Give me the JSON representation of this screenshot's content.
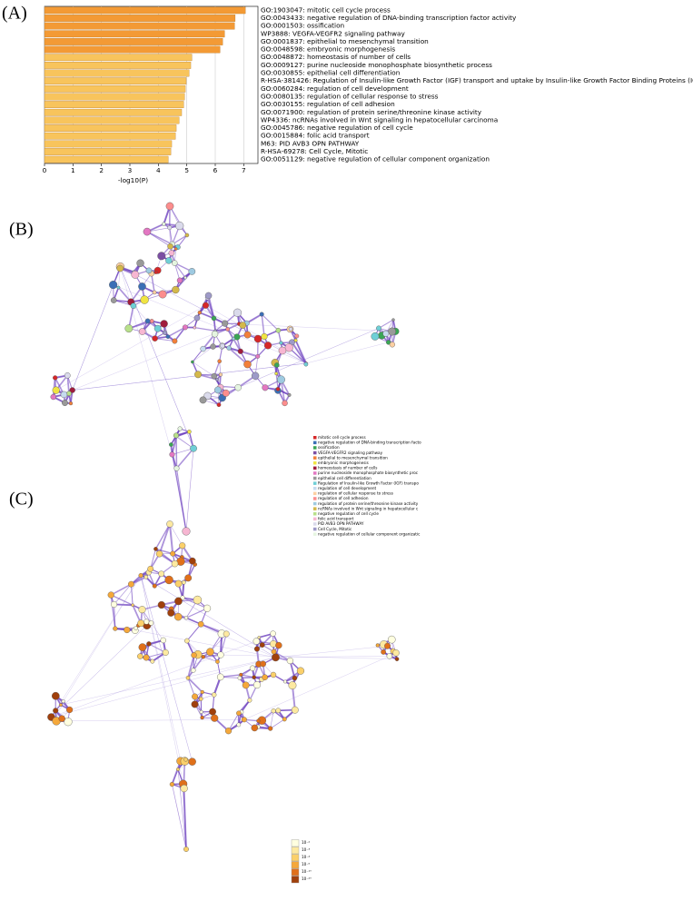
{
  "panels": [
    "(A)",
    "(B)",
    "(C)"
  ],
  "chart_data": {
    "type": "bar",
    "orientation": "horizontal",
    "categories": [
      "GO:1903047: mitotic cell cycle process",
      "GO:0043433: negative regulation of DNA-binding transcription factor activity",
      "GO:0001503: ossification",
      "WP3888: VEGFA-VEGFR2 signaling pathway",
      "GO:0001837: epithelial to mesenchymal transition",
      "GO:0048598: embryonic morphogenesis",
      "GO:0048872: homeostasis of number of cells",
      "GO:0009127: purine nucleoside monophosphate biosynthetic process",
      "GO:0030855: epithelial cell differentiation",
      "R-HSA-381426: Regulation of Insulin-like Growth Factor (IGF) transport and uptake by Insulin-like Growth Factor Binding Proteins (IGFBPs)",
      "GO:0060284: regulation of cell development",
      "GO:0080135: regulation of cellular response to stress",
      "GO:0030155: regulation of cell adhesion",
      "GO:0071900: regulation of protein serine/threonine kinase activity",
      "WP4336: ncRNAs involved in Wnt signaling in hepatocellular carcinoma",
      "GO:0045786: negative regulation of cell cycle",
      "GO:0015884: folic acid transport",
      "M63: PID AVB3 OPN PATHWAY",
      "R-HSA-69278: Cell Cycle, Mitotic",
      "GO:0051129: negative regulation of cellular component organization"
    ],
    "values": [
      7.06,
      6.7,
      6.68,
      6.33,
      6.26,
      6.17,
      5.18,
      5.14,
      5.08,
      4.98,
      4.95,
      4.92,
      4.89,
      4.82,
      4.73,
      4.63,
      4.6,
      4.47,
      4.44,
      4.35
    ],
    "colors": [
      "#f39a35",
      "#f39a35",
      "#f39a35",
      "#f39a35",
      "#f39a35",
      "#f39a35",
      "#f8c45c",
      "#f8c45c",
      "#f8c45c",
      "#f8c45c",
      "#f8c45c",
      "#f8c45c",
      "#f8c45c",
      "#f8c45c",
      "#f8c45c",
      "#f8c45c",
      "#f8c45c",
      "#f8c45c",
      "#f8c45c",
      "#f8c45c"
    ],
    "xlabel": "-log10(P)",
    "xlim": [
      0,
      7.5
    ],
    "xticks": [
      0,
      1,
      2,
      3,
      4,
      5,
      6,
      7
    ],
    "grid": true
  },
  "network_legend": {
    "items": [
      {
        "label": "mitotic cell cycle process",
        "color": "#d62728"
      },
      {
        "label": "negative regulation of DNA-binding transcription facto",
        "color": "#3b6fb6"
      },
      {
        "label": "ossification",
        "color": "#3aa655"
      },
      {
        "label": "VEGFA-VEGFR2 signaling pathway",
        "color": "#7b4ea3"
      },
      {
        "label": "epithelial to mesenchymal transition",
        "color": "#f2803a"
      },
      {
        "label": "embryonic morphogenesis",
        "color": "#f0e442"
      },
      {
        "label": "homeostasis of number of cells",
        "color": "#a01c3c"
      },
      {
        "label": "purine nucleoside monophosphate biosynthetic proc",
        "color": "#e377c2"
      },
      {
        "label": "epithelial cell differentiation",
        "color": "#999999"
      },
      {
        "label": "Regulation of Insulin-like Growth Factor (IGF) transpo",
        "color": "#6fcfd6"
      },
      {
        "label": "regulation of cell development",
        "color": "#c6dbef"
      },
      {
        "label": "regulation of cellular response to stress",
        "color": "#fdd0a2"
      },
      {
        "label": "regulation of cell adhesion",
        "color": "#fc8d8d"
      },
      {
        "label": "regulation of protein serine/threonine kinase activity",
        "color": "#9ecae1"
      },
      {
        "label": "ncRNAs involved in Wnt signaling in hepatocellular c",
        "color": "#d4b84a"
      },
      {
        "label": "negative regulation of cell cycle",
        "color": "#b8e08a"
      },
      {
        "label": "folic acid transport",
        "color": "#f7b6d2"
      },
      {
        "label": "PID AVB3 OPN PATHWAY",
        "color": "#dadaeb"
      },
      {
        "label": "Cell Cycle, Mitotic",
        "color": "#9e9ac8"
      },
      {
        "label": "negative regulation of cellular component organizatic",
        "color": "#e5f5e0"
      }
    ]
  },
  "pvalue_legend": {
    "items": [
      {
        "label": "10⁻²",
        "color": "#ffffe0"
      },
      {
        "label": "10⁻³",
        "color": "#fde9a0"
      },
      {
        "label": "10⁻⁴",
        "color": "#fbd06a"
      },
      {
        "label": "10⁻⁶",
        "color": "#f5a83a"
      },
      {
        "label": "10⁻¹⁰",
        "color": "#e0701a"
      },
      {
        "label": "10⁻²⁰",
        "color": "#a0400c"
      }
    ]
  }
}
